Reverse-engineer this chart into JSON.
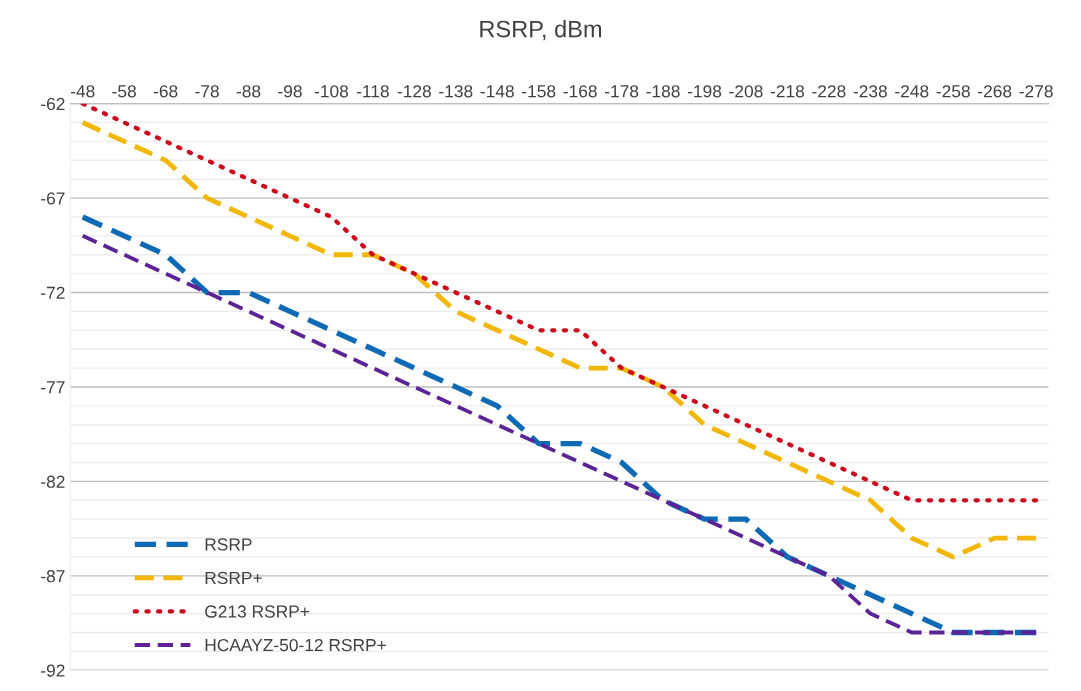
{
  "chart_data": {
    "type": "line",
    "title": "RSRP, dBm",
    "categories": [
      "-48",
      "-58",
      "-68",
      "-78",
      "-88",
      "-98",
      "-108",
      "-118",
      "-128",
      "-138",
      "-148",
      "-158",
      "-168",
      "-178",
      "-188",
      "-198",
      "-208",
      "-218",
      "-228",
      "-238",
      "-248",
      "-258",
      "-268",
      "-278"
    ],
    "series": [
      {
        "name": "RSRP",
        "color": "#0e6ab4",
        "line_style": "dashed",
        "values": [
          -68,
          -69,
          -70,
          -72,
          -72,
          -73,
          -74,
          -75,
          -76,
          -77,
          -78,
          -80,
          -80,
          -81,
          -83,
          -84,
          -84,
          -86,
          -87,
          -88,
          -89,
          -90,
          -90,
          -90
        ]
      },
      {
        "name": "RSRP+",
        "color": "#f2b705",
        "line_style": "dashed",
        "values": [
          -63,
          -64,
          -65,
          -67,
          -68,
          -69,
          -70,
          -70,
          -71,
          -73,
          -74,
          -75,
          -76,
          -76,
          -77,
          -79,
          -80,
          -81,
          -82,
          -83,
          -85,
          -86,
          -85,
          -85
        ]
      },
      {
        "name": "G213 RSRP+",
        "color": "#cc0a1e",
        "line_style": "dotted",
        "values": [
          -62,
          -63,
          -64,
          -65,
          -66,
          -67,
          -68,
          -70,
          -71,
          -72,
          -73,
          -74,
          -74,
          -76,
          -77,
          -78,
          -79,
          -80,
          -81,
          -82,
          -83,
          -83,
          -83,
          -83
        ]
      },
      {
        "name": "HCAAYZ-50-12 RSRP+",
        "color": "#5b2396",
        "line_style": "dashed",
        "values": [
          -69,
          -70,
          -71,
          -72,
          -73,
          -74,
          -75,
          -76,
          -77,
          -78,
          -79,
          -80,
          -81,
          -82,
          -83,
          -84,
          -85,
          -86,
          -87,
          -89,
          -90,
          -90,
          -90,
          -90
        ]
      }
    ],
    "ylim": [
      -92,
      -62
    ],
    "yticks": [
      -92,
      -87,
      -82,
      -77,
      -72,
      -67,
      -62
    ],
    "grid": "y",
    "legend": "bottom left",
    "marker": "none"
  }
}
